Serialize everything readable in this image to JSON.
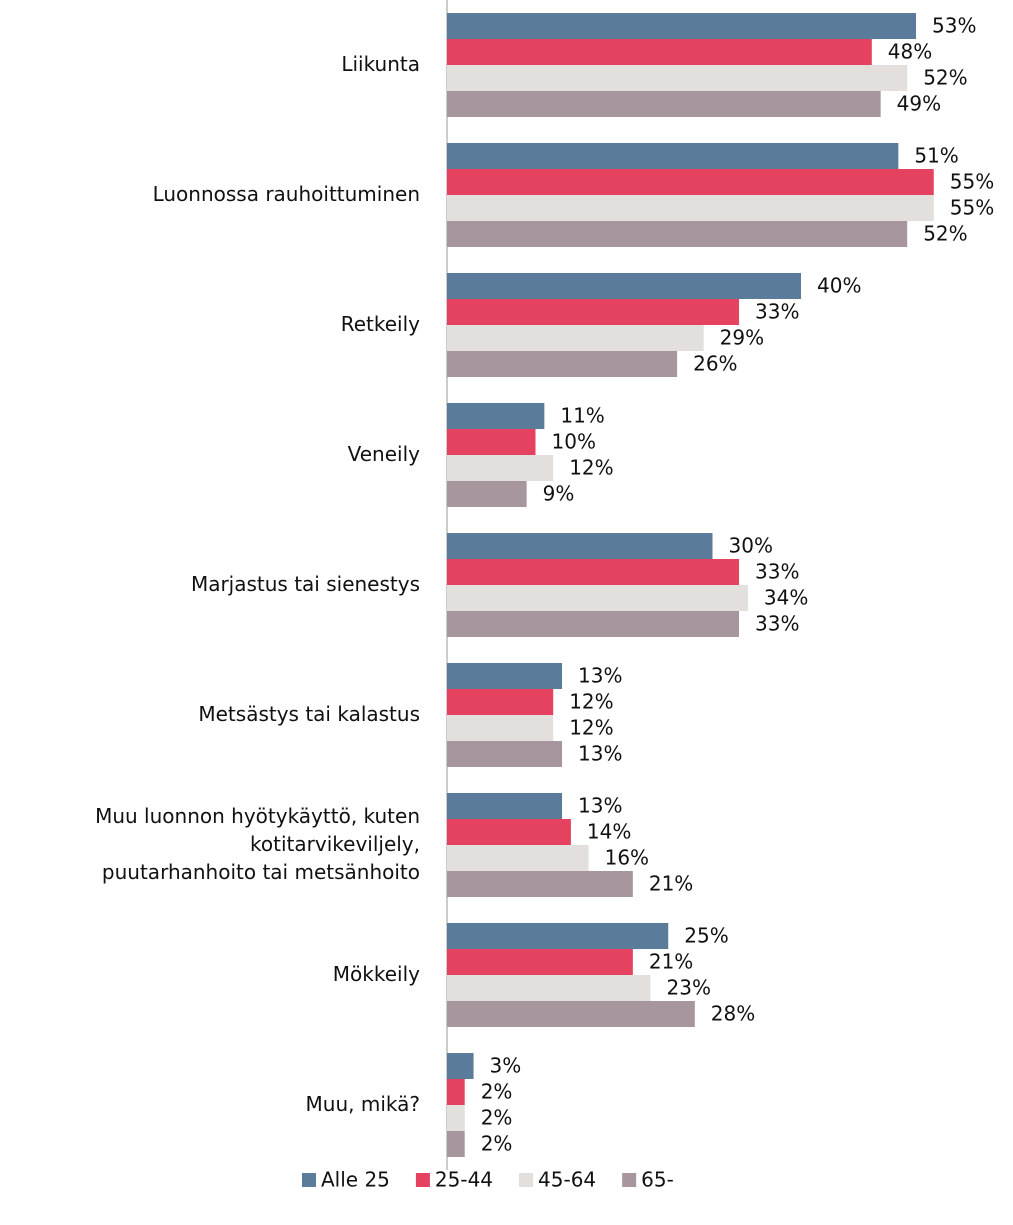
{
  "chart_data": {
    "type": "bar",
    "orientation": "horizontal",
    "categories": [
      "Liikunta",
      "Luonnossa rauhoittuminen",
      "Retkeily",
      "Veneily",
      "Marjastus tai sienestys",
      "Metsästys tai kalastus",
      "Muu luonnon hyötykäyttö, kuten\nkotitarvikeviljely,\npuutarhanhoito tai metsänhoito",
      "Mökkeily",
      "Muu, mikä?"
    ],
    "series": [
      {
        "name": "Alle 25",
        "color": "#5b7b9b",
        "values": [
          53,
          51,
          40,
          11,
          30,
          13,
          13,
          25,
          3
        ],
        "value_labels": [
          "53%",
          "51%",
          "40%",
          "11%",
          "30%",
          "13%",
          "13%",
          "25%",
          "3%"
        ]
      },
      {
        "name": "25-44",
        "color": "#e5425f",
        "values": [
          48,
          55,
          33,
          10,
          33,
          12,
          14,
          21,
          2
        ],
        "value_labels": [
          "48%",
          "55%",
          "33%",
          "10%",
          "33%",
          "12%",
          "14%",
          "21%",
          "2%"
        ]
      },
      {
        "name": "45-64",
        "color": "#e2dfdc",
        "values": [
          52,
          55,
          29,
          12,
          34,
          12,
          16,
          23,
          2
        ],
        "value_labels": [
          "52%",
          "55%",
          "29%",
          "12%",
          "34%",
          "12%",
          "16%",
          "23%",
          "2%"
        ]
      },
      {
        "name": "65-",
        "color": "#a8969f",
        "values": [
          49,
          52,
          26,
          9,
          33,
          13,
          21,
          28,
          2
        ],
        "value_labels": [
          "49%",
          "52%",
          "26%",
          "9%",
          "33%",
          "13%",
          "21%",
          "28%",
          "2%"
        ]
      }
    ],
    "legend": "bottom"
  }
}
